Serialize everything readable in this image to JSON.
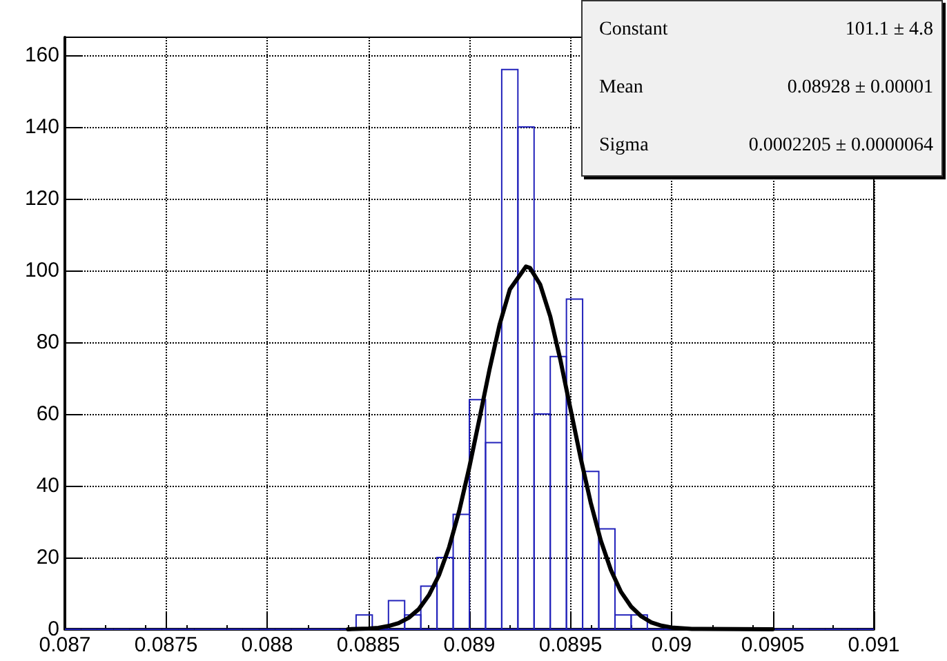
{
  "chart_data": {
    "type": "histogram",
    "bins": [
      0.087,
      0.08708,
      0.08716,
      0.08724,
      0.08732,
      0.0874,
      0.08748,
      0.08756,
      0.08764,
      0.08772,
      0.0878,
      0.08788,
      0.08796,
      0.08804,
      0.08812,
      0.0882,
      0.08828,
      0.08836,
      0.08844,
      0.08852,
      0.0886,
      0.08868,
      0.08876,
      0.08884,
      0.08892,
      0.089,
      0.08908,
      0.08916,
      0.08924,
      0.08932,
      0.0894,
      0.08948,
      0.08956,
      0.08964,
      0.08972,
      0.0898,
      0.08988,
      0.08996,
      0.09004,
      0.09012,
      0.0902,
      0.09028,
      0.09036,
      0.09044,
      0.09052,
      0.0906,
      0.09068,
      0.09076,
      0.09084,
      0.09092,
      0.091
    ],
    "series": [
      {
        "color": "#2222bb",
        "values": [
          0,
          0,
          0,
          0,
          0,
          0,
          0,
          0,
          0,
          0,
          0,
          0,
          0,
          0,
          0,
          0,
          0,
          0,
          4,
          0,
          8,
          4,
          12,
          20,
          32,
          64,
          52,
          156,
          140,
          60,
          76,
          92,
          44,
          28,
          4,
          4,
          0,
          0,
          0,
          0,
          0,
          0,
          0,
          0,
          0,
          0,
          0,
          0,
          0,
          0
        ]
      },
      {
        "type": "line",
        "color": "#000000",
        "x": [
          0.0884,
          0.0885,
          0.08855,
          0.0886,
          0.08865,
          0.0887,
          0.08875,
          0.0888,
          0.08885,
          0.0889,
          0.08895,
          0.089,
          0.08905,
          0.0891,
          0.08915,
          0.0892,
          0.08928,
          0.0893,
          0.08935,
          0.0894,
          0.08945,
          0.0895,
          0.08955,
          0.0896,
          0.08965,
          0.0897,
          0.08975,
          0.0898,
          0.08985,
          0.0899,
          0.08995,
          0.09,
          0.0901,
          0.0905
        ],
        "values": [
          0,
          0.2,
          0.4,
          0.9,
          1.7,
          3.2,
          5.6,
          9.5,
          15.1,
          22.9,
          33,
          45.2,
          58.7,
          72.5,
          85,
          94.7,
          101.1,
          100.7,
          96.1,
          87.2,
          75.1,
          61.4,
          47.8,
          35.3,
          24.7,
          16.5,
          10.4,
          6.3,
          3.6,
          1.9,
          1,
          0.5,
          0.1,
          0
        ]
      }
    ],
    "annotations": [
      "Constant",
      "101.1 ± 4.8",
      "Mean",
      "0.08928 ± 0.00001",
      "Sigma",
      "0.0002205 ± 0.0000064"
    ],
    "xlim": [
      0.087,
      0.091
    ],
    "xticks": [
      0.087,
      0.0875,
      0.088,
      0.0885,
      0.089,
      0.0895,
      0.09,
      0.0905,
      0.091
    ],
    "ylim": [
      0,
      165
    ],
    "yticks": [
      0,
      20,
      40,
      60,
      80,
      100,
      120,
      140,
      160
    ],
    "grid": true,
    "marker": "none",
    "line_style": "solid"
  }
}
